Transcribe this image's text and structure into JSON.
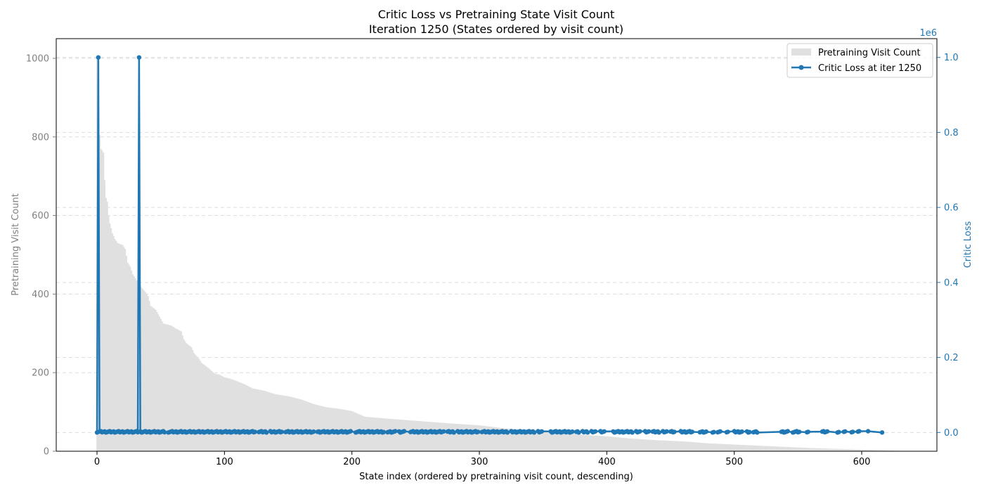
{
  "chart_data": {
    "type": "bar+line",
    "title": "Critic Loss vs Pretraining State Visit Count",
    "subtitle": "Iteration 1250 (States ordered by visit count)",
    "xlabel": "State index (ordered by pretraining visit count, descending)",
    "ylabel_left": "Pretraining Visit Count",
    "ylabel_right": "Critic Loss",
    "right_axis_multiplier": "1e6",
    "xlim": [
      -32,
      659
    ],
    "ylim_left": [
      0,
      1050
    ],
    "ylim_right": [
      -0.05,
      1.05
    ],
    "xticks": [
      0,
      100,
      200,
      300,
      400,
      500,
      600
    ],
    "yticks_left": [
      0,
      200,
      400,
      600,
      800,
      1000
    ],
    "yticks_right": [
      0.0,
      0.2,
      0.4,
      0.6,
      0.8,
      1.0
    ],
    "grid": true,
    "legend_position": "top-right",
    "colors": {
      "bars": "#e0e0e0",
      "line": "#1f77b4",
      "left_axis": "#808080",
      "right_axis": "#1f77b4"
    },
    "series": [
      {
        "name": "Pretraining Visit Count",
        "kind": "bar",
        "axis": "left",
        "curve_points": [
          [
            0,
            1000
          ],
          [
            1,
            840
          ],
          [
            2,
            805
          ],
          [
            3,
            770
          ],
          [
            5,
            760
          ],
          [
            6,
            690
          ],
          [
            7,
            645
          ],
          [
            8,
            635
          ],
          [
            9,
            600
          ],
          [
            10,
            580
          ],
          [
            12,
            555
          ],
          [
            14,
            540
          ],
          [
            16,
            530
          ],
          [
            20,
            525
          ],
          [
            22,
            515
          ],
          [
            24,
            480
          ],
          [
            26,
            470
          ],
          [
            28,
            450
          ],
          [
            30,
            440
          ],
          [
            32,
            430
          ],
          [
            34,
            420
          ],
          [
            38,
            405
          ],
          [
            40,
            395
          ],
          [
            42,
            370
          ],
          [
            46,
            360
          ],
          [
            52,
            325
          ],
          [
            58,
            320
          ],
          [
            62,
            312
          ],
          [
            66,
            305
          ],
          [
            68,
            285
          ],
          [
            70,
            275
          ],
          [
            74,
            265
          ],
          [
            76,
            250
          ],
          [
            80,
            235
          ],
          [
            82,
            225
          ],
          [
            86,
            215
          ],
          [
            88,
            210
          ],
          [
            92,
            198
          ],
          [
            96,
            195
          ],
          [
            100,
            188
          ],
          [
            104,
            185
          ],
          [
            110,
            178
          ],
          [
            116,
            170
          ],
          [
            122,
            160
          ],
          [
            130,
            155
          ],
          [
            140,
            145
          ],
          [
            150,
            140
          ],
          [
            160,
            132
          ],
          [
            170,
            120
          ],
          [
            180,
            112
          ],
          [
            190,
            108
          ],
          [
            200,
            102
          ],
          [
            210,
            88
          ],
          [
            220,
            85
          ],
          [
            240,
            80
          ],
          [
            260,
            75
          ],
          [
            280,
            70
          ],
          [
            300,
            66
          ],
          [
            320,
            58
          ],
          [
            340,
            54
          ],
          [
            360,
            50
          ],
          [
            380,
            42
          ],
          [
            400,
            38
          ],
          [
            420,
            32
          ],
          [
            440,
            28
          ],
          [
            460,
            25
          ],
          [
            480,
            20
          ],
          [
            500,
            17
          ],
          [
            520,
            14
          ],
          [
            540,
            11
          ],
          [
            560,
            8
          ],
          [
            580,
            6
          ],
          [
            600,
            4
          ],
          [
            610,
            3
          ],
          [
            620,
            2
          ],
          [
            630,
            1
          ]
        ]
      },
      {
        "name": "Critic Loss at iter 1250",
        "kind": "line",
        "axis": "right",
        "peaks": [
          [
            1,
            1.0
          ],
          [
            33,
            1.0
          ]
        ],
        "baseline_value": 0.0,
        "baseline_jitter_max": 0.004,
        "point_x": [
          0,
          1,
          2,
          3,
          4,
          5,
          6,
          7,
          8,
          9,
          10,
          11,
          12,
          13,
          14,
          15,
          16,
          17,
          18,
          19,
          20,
          21,
          22,
          23,
          24,
          25,
          26,
          27,
          28,
          29,
          30,
          31,
          32,
          33,
          34,
          35,
          36,
          37,
          38,
          39,
          40,
          41,
          42,
          43,
          44,
          45,
          46,
          47,
          48,
          49,
          50,
          51,
          52,
          53,
          56,
          57,
          58,
          59,
          60,
          61,
          62,
          63,
          64,
          65,
          66,
          67,
          68,
          69,
          70,
          71,
          72,
          73,
          74,
          75,
          76,
          77,
          78,
          79,
          80,
          81,
          82,
          83,
          84,
          85,
          86,
          87,
          88,
          89,
          90,
          91,
          92,
          93,
          94,
          95,
          96,
          97,
          98,
          99,
          100,
          101,
          102,
          103,
          104,
          105,
          106,
          107,
          108,
          109,
          110,
          111,
          112,
          113,
          114,
          115,
          116,
          117,
          118,
          119,
          120,
          121,
          122,
          123,
          124,
          127,
          128,
          129,
          130,
          131,
          132,
          133,
          136,
          137,
          138,
          139,
          140,
          141,
          142,
          143,
          144,
          145,
          148,
          149,
          150,
          151,
          152,
          153,
          154,
          155,
          156,
          157,
          158,
          159,
          160,
          161,
          162,
          163,
          164,
          165,
          166,
          167,
          168,
          169,
          170,
          173,
          174,
          175,
          176,
          177,
          178,
          179,
          180,
          181,
          182,
          183,
          184,
          185,
          186,
          187,
          188,
          189,
          190,
          191,
          192,
          193,
          194,
          195,
          196,
          197,
          198,
          199,
          203,
          204,
          205,
          206,
          207,
          208,
          209,
          210,
          211,
          212,
          213,
          214,
          215,
          216,
          217,
          218,
          219,
          220,
          221,
          222,
          223,
          224,
          225,
          228,
          229,
          230,
          231,
          232,
          233,
          234,
          237,
          238,
          239,
          240,
          241,
          246,
          247,
          248,
          249,
          250,
          251,
          252,
          253,
          254,
          255,
          256,
          257,
          258,
          259,
          260,
          261,
          262,
          263,
          264,
          265,
          266,
          267,
          268,
          269,
          270,
          271,
          272,
          275,
          276,
          277,
          278,
          279,
          280,
          283,
          284,
          285,
          286,
          287,
          288,
          289,
          290,
          291,
          292,
          293,
          294,
          295,
          296,
          297,
          298,
          299,
          302,
          303,
          304,
          305,
          306,
          307,
          308,
          309,
          310,
          311,
          312,
          313,
          314,
          315,
          316,
          317,
          318,
          319,
          320,
          321,
          322,
          325,
          326,
          327,
          328,
          329,
          330,
          331,
          332,
          333,
          334,
          335,
          336,
          337,
          338,
          339,
          340,
          341,
          342,
          343,
          346,
          347,
          348,
          349,
          356,
          357,
          358,
          359,
          360,
          361,
          362,
          363,
          364,
          365,
          366,
          367,
          368,
          369,
          370,
          371,
          372,
          373,
          376,
          377,
          378,
          381,
          382,
          383,
          384,
          385,
          388,
          389,
          390,
          391,
          395,
          396,
          397,
          398,
          405,
          406,
          407,
          408,
          409,
          410,
          411,
          412,
          413,
          414,
          415,
          416,
          417,
          418,
          419,
          420,
          423,
          424,
          425,
          426,
          430,
          431,
          432,
          433,
          436,
          437,
          438,
          439,
          440,
          441,
          444,
          445,
          446,
          447,
          450,
          451,
          452,
          453,
          458,
          459,
          460,
          461,
          462,
          463,
          464,
          465,
          466,
          467,
          473,
          474,
          475,
          476,
          477,
          478,
          483,
          484,
          487,
          488,
          489,
          494,
          495,
          500,
          501,
          502,
          503,
          504,
          505,
          506,
          510,
          511,
          512,
          515,
          516,
          517,
          518,
          537,
          538,
          539,
          540,
          541,
          542,
          546,
          547,
          548,
          549,
          550,
          551,
          557,
          558,
          569,
          570,
          571,
          572,
          573,
          581,
          582,
          586,
          587,
          592,
          593,
          597,
          598,
          605,
          616
        ]
      }
    ]
  },
  "legend": {
    "entries": [
      {
        "label": "Pretraining Visit Count",
        "marker": "bar"
      },
      {
        "label": "Critic Loss at iter 1250",
        "marker": "line"
      }
    ]
  }
}
